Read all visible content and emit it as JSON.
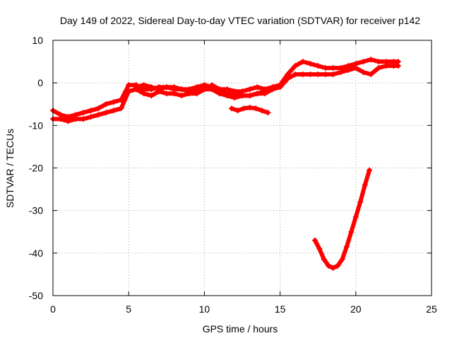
{
  "chart_data": {
    "type": "scatter",
    "title": "Day 149 of 2022, Sidereal Day-to-day VTEC variation (SDTVAR) for receiver p142",
    "xlabel": "GPS time / hours",
    "ylabel": "SDTVAR / TECUs",
    "xlim": [
      0,
      25
    ],
    "ylim": [
      -50,
      10
    ],
    "xticks": [
      0,
      5,
      10,
      15,
      20,
      25
    ],
    "yticks": [
      10,
      0,
      -10,
      -20,
      -30,
      -40,
      -50
    ],
    "grid": true,
    "marker": "+",
    "series_color": "#ff0000",
    "series": [
      {
        "name": "main trend upper",
        "x": [
          0,
          0.5,
          1,
          1.5,
          2,
          2.5,
          3,
          3.5,
          4,
          4.5,
          4.8,
          5,
          5.5,
          6,
          6.5,
          7,
          7.5,
          8,
          8.5,
          9,
          9.5,
          10,
          10.5,
          11,
          11.5,
          12,
          12.5,
          13,
          13.5,
          14,
          14.5,
          15,
          15.5,
          16,
          16.5,
          17,
          17.5,
          18,
          18.5,
          19,
          19.5,
          20,
          20.5,
          21,
          21.5,
          22,
          22.5,
          22.8
        ],
        "y": [
          -6.5,
          -7.5,
          -8,
          -7.5,
          -7,
          -6.5,
          -6,
          -5,
          -4.5,
          -4,
          -2,
          -0.5,
          -0.5,
          -1.5,
          -1.5,
          -1,
          -1,
          -1.5,
          -1.5,
          -1.5,
          -1,
          -0.5,
          -1,
          -1.5,
          -1.5,
          -2,
          -2,
          -1.5,
          -1,
          -1.5,
          -1,
          -0.5,
          2,
          4,
          5,
          4.5,
          4,
          3.5,
          3.5,
          3.5,
          4,
          4.5,
          5,
          5.5,
          5,
          5,
          5,
          5
        ]
      },
      {
        "name": "main trend lower",
        "x": [
          0,
          0.5,
          1,
          1.5,
          2,
          2.5,
          3,
          3.5,
          4,
          4.5,
          5,
          5.5,
          6,
          6.5,
          7,
          7.5,
          8,
          8.5,
          9,
          9.5,
          10,
          10.5,
          11,
          11.5,
          12,
          12.5,
          13,
          13.5,
          14,
          14.5,
          15,
          15.5,
          16,
          16.5,
          17,
          17.5,
          18,
          18.5,
          19,
          19.5,
          20,
          20.5,
          21,
          21.5,
          22,
          22.5,
          22.8
        ],
        "y": [
          -8.5,
          -8.5,
          -9,
          -8.5,
          -8.5,
          -8,
          -7.5,
          -7,
          -6.5,
          -6,
          -2,
          -1.5,
          -2.5,
          -3,
          -2,
          -2.5,
          -2.5,
          -3,
          -2.5,
          -2.5,
          -1.5,
          -1.5,
          -2.5,
          -3,
          -3.5,
          -3,
          -3,
          -2.5,
          -2.5,
          -1.5,
          -1,
          1,
          2,
          2,
          2,
          2,
          2,
          2,
          2.5,
          3,
          3.5,
          2.5,
          2,
          3.5,
          4,
          4,
          4
        ]
      },
      {
        "name": "middle branch",
        "x": [
          5.5,
          6,
          6.5,
          7,
          7.5,
          8,
          8.5,
          9,
          9.5,
          10,
          10.5,
          11,
          11.5,
          12,
          12.5,
          13,
          13.5,
          14
        ],
        "y": [
          -1,
          -0.5,
          -1,
          -1.5,
          -1,
          -1,
          -1.5,
          -2,
          -2,
          -1.5,
          -0.5,
          -1.5,
          -2.5,
          -2.5,
          -3,
          -3,
          -2.5,
          -2
        ]
      },
      {
        "name": "dip segment",
        "x": [
          11.8,
          12.2,
          12.6,
          13,
          13.4,
          13.8,
          14.2
        ],
        "y": [
          -6,
          -6.5,
          -6,
          -5.8,
          -6,
          -6.5,
          -7
        ]
      },
      {
        "name": "large negative excursion",
        "x": [
          17.3,
          17.6,
          17.9,
          18.2,
          18.5,
          18.8,
          19.1,
          19.4,
          19.7,
          20,
          20.3,
          20.6,
          20.9
        ],
        "y": [
          -37,
          -39,
          -41.5,
          -43,
          -43.5,
          -43,
          -41.5,
          -38.5,
          -35,
          -31.5,
          -28,
          -24,
          -20.5
        ]
      }
    ]
  }
}
